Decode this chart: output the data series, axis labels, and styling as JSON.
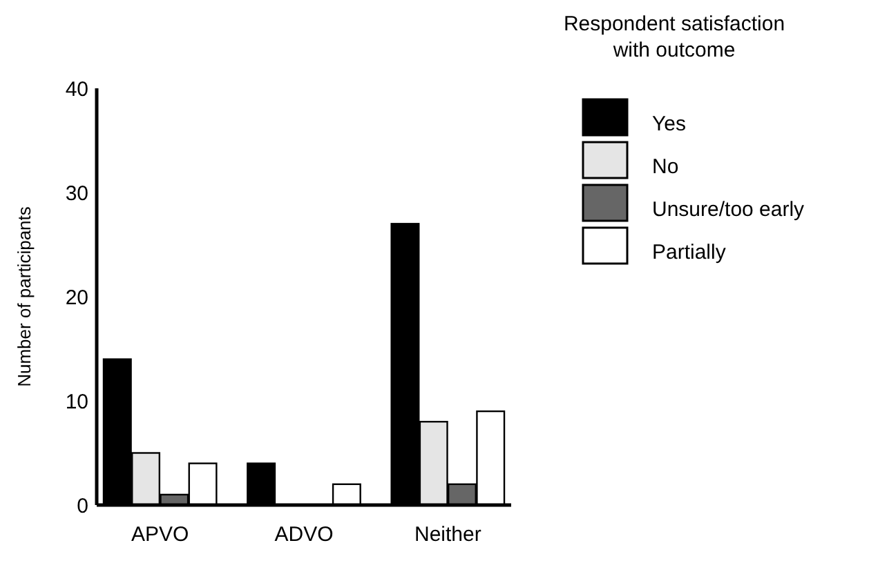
{
  "chart_data": {
    "type": "bar",
    "ylabel": "Number of participants",
    "legend_title": "Respondent satisfaction\nwith outcome",
    "categories": [
      "APVO",
      "ADVO",
      "Neither"
    ],
    "series": [
      {
        "name": "Yes",
        "color": "#000000",
        "values": [
          14,
          4,
          27
        ]
      },
      {
        "name": "No",
        "color": "#e5e5e5",
        "values": [
          5,
          0,
          8
        ]
      },
      {
        "name": "Unsure/too early",
        "color": "#666666",
        "values": [
          1,
          0,
          2
        ]
      },
      {
        "name": "Partially",
        "color": "#ffffff",
        "values": [
          4,
          2,
          9
        ]
      }
    ],
    "ylim": [
      0,
      40
    ],
    "yticks": [
      0,
      10,
      20,
      30,
      40
    ],
    "legend": "top right",
    "grid": false
  }
}
